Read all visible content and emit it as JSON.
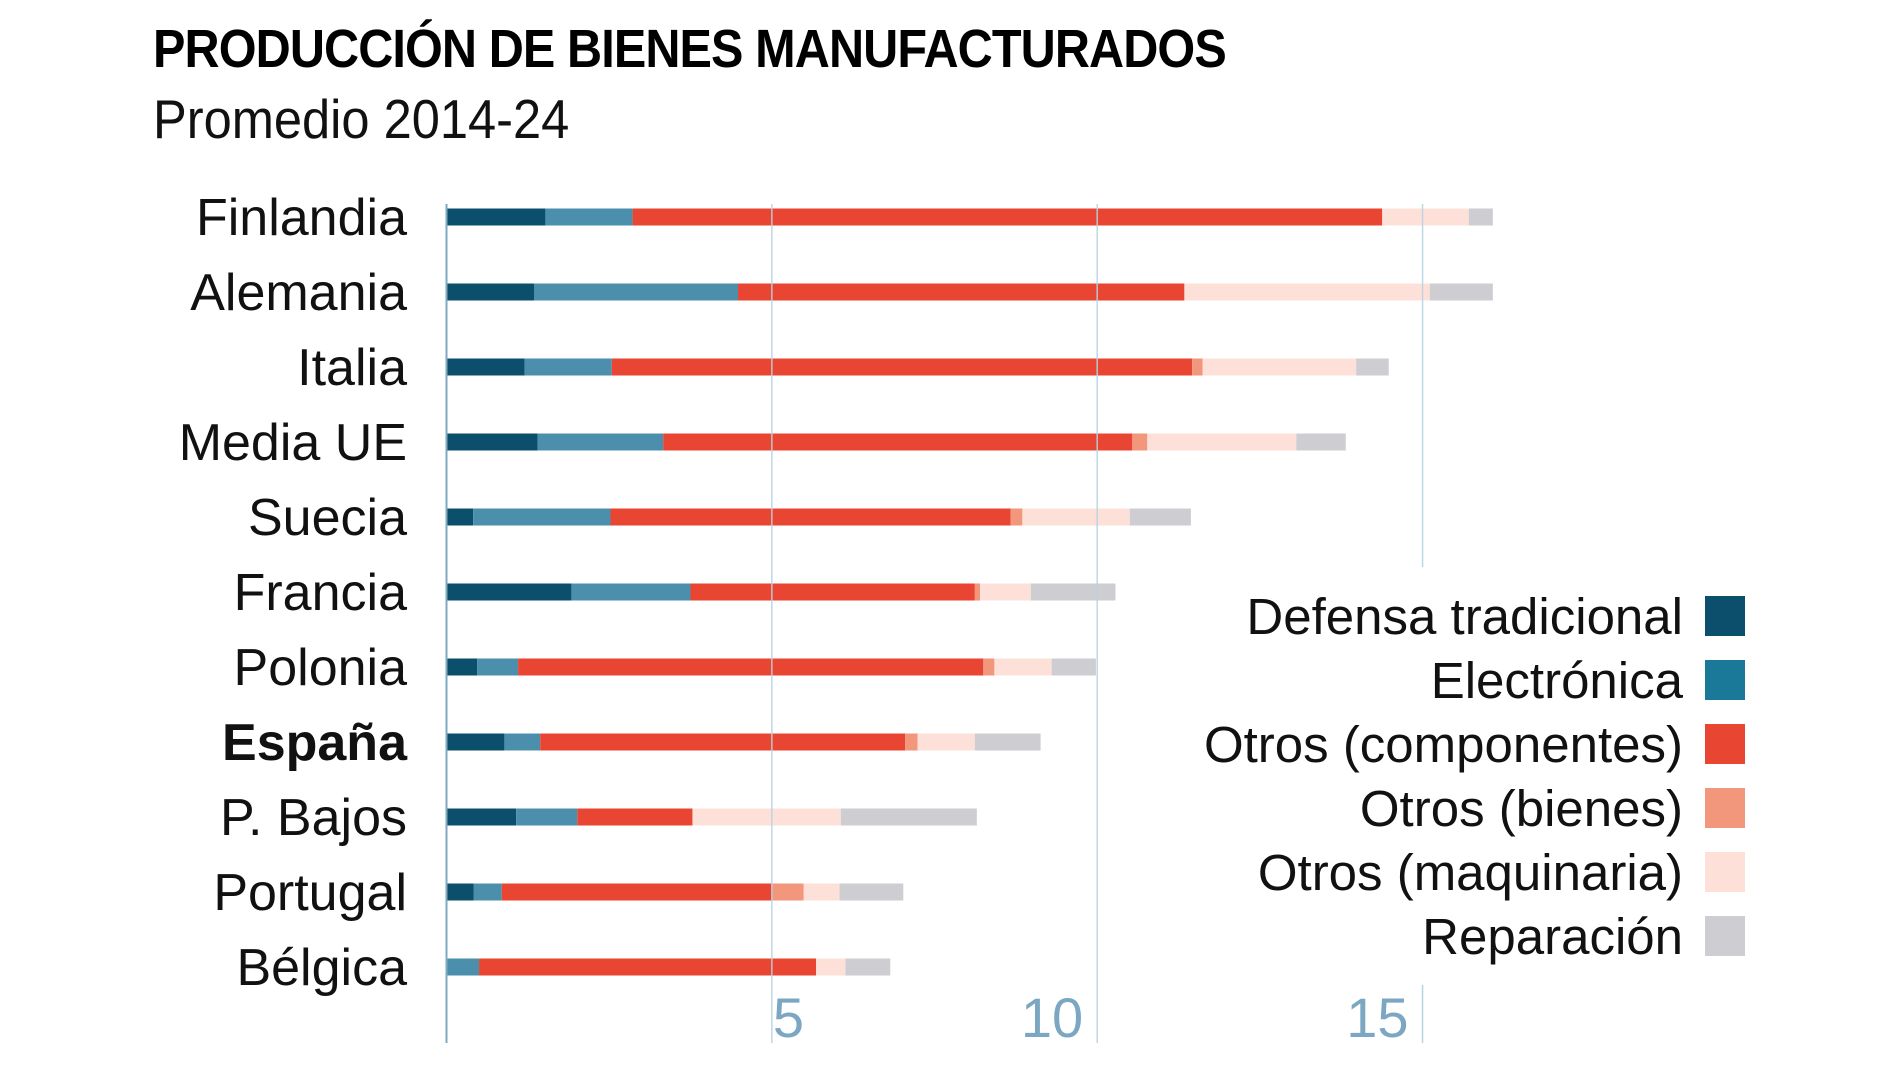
{
  "header": {
    "title": "PRODUCCIÓN DE BIENES MANUFACTURADOS",
    "subtitle": "Promedio 2014-24"
  },
  "chart_data": {
    "type": "bar",
    "orientation": "horizontal",
    "stacked": true,
    "title": "PRODUCCIÓN DE BIENES MANUFACTURADOS",
    "subtitle": "Promedio 2014-24",
    "xlabel": "",
    "ylabel": "",
    "xlim": [
      0,
      17
    ],
    "xticks": [
      5,
      10,
      15
    ],
    "xtick_labels": [
      "5",
      "10",
      "15"
    ],
    "grid": true,
    "legend_position": "bottom-right",
    "categories": [
      "Finlandia",
      "Alemania",
      "Italia",
      "Media UE",
      "Suecia",
      "Francia",
      "Polonia",
      "España",
      "P. Bajos",
      "Portugal",
      "Bélgica"
    ],
    "highlight_category": "España",
    "series": [
      {
        "name": "Defensa tradicional",
        "color": "#0b4f6c",
        "values": [
          1.52,
          1.35,
          1.2,
          1.4,
          0.41,
          1.92,
          0.47,
          0.89,
          1.07,
          0.42,
          0.0
        ]
      },
      {
        "name": "Electrónica",
        "color": "#1a7898",
        "bar_color": "#4b8fad",
        "values": [
          1.34,
          3.13,
          1.34,
          1.93,
          2.11,
          1.83,
          0.63,
          0.55,
          0.94,
          0.43,
          0.5
        ]
      },
      {
        "name": "Otros (componentes)",
        "color": "#e84632",
        "values": [
          11.52,
          6.86,
          8.92,
          7.21,
          6.15,
          4.37,
          7.15,
          5.61,
          1.77,
          4.15,
          5.18
        ]
      },
      {
        "name": "Otros (bienes)",
        "color": "#f2967c",
        "values": [
          0.0,
          0.0,
          0.16,
          0.23,
          0.18,
          0.08,
          0.17,
          0.19,
          0.0,
          0.49,
          0.0
        ]
      },
      {
        "name": "Otros (maquinaria)",
        "color": "#fde1d8",
        "values": [
          1.33,
          3.77,
          2.36,
          2.29,
          1.65,
          0.78,
          0.88,
          0.88,
          2.28,
          0.55,
          0.45
        ]
      },
      {
        "name": "Reparación",
        "color": "#cdcdd2",
        "values": [
          0.37,
          0.97,
          0.5,
          0.76,
          0.94,
          1.3,
          0.68,
          1.01,
          2.09,
          0.98,
          0.69
        ]
      }
    ]
  },
  "colors": {
    "axis": "#7fa9bf",
    "grid": "#b7d3e2",
    "tick_text": "#7ba7c2"
  }
}
